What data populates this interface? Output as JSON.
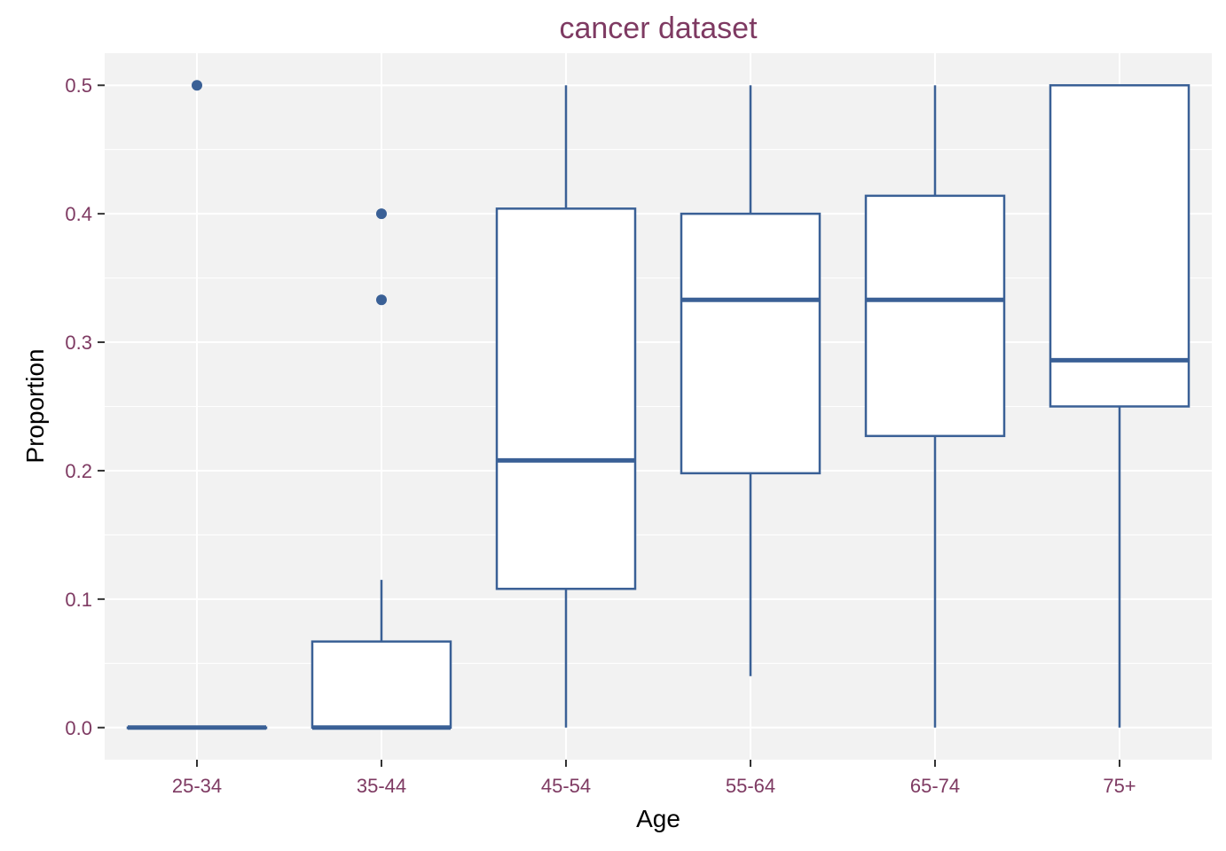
{
  "chart_data": {
    "type": "boxplot",
    "title": "cancer dataset",
    "xlabel": "Age",
    "ylabel": "Proportion",
    "ylim": [
      -0.025,
      0.525
    ],
    "yticks": [
      "0.0",
      "0.1",
      "0.2",
      "0.3",
      "0.4",
      "0.5"
    ],
    "categories": [
      "25-34",
      "35-44",
      "45-54",
      "55-64",
      "65-74",
      "75+"
    ],
    "boxes": [
      {
        "category": "25-34",
        "whisker_low": 0.0,
        "q1": 0.0,
        "median": 0.0,
        "q3": 0.0,
        "whisker_high": 0.0,
        "outliers": [
          0.5
        ]
      },
      {
        "category": "35-44",
        "whisker_low": 0.0,
        "q1": 0.0,
        "median": 0.0,
        "q3": 0.067,
        "whisker_high": 0.115,
        "outliers": [
          0.333,
          0.4
        ]
      },
      {
        "category": "45-54",
        "whisker_low": 0.0,
        "q1": 0.108,
        "median": 0.208,
        "q3": 0.404,
        "whisker_high": 0.5,
        "outliers": []
      },
      {
        "category": "55-64",
        "whisker_low": 0.04,
        "q1": 0.198,
        "median": 0.333,
        "q3": 0.4,
        "whisker_high": 0.5,
        "outliers": []
      },
      {
        "category": "65-74",
        "whisker_low": 0.0,
        "q1": 0.227,
        "median": 0.333,
        "q3": 0.414,
        "whisker_high": 0.5,
        "outliers": []
      },
      {
        "category": "75+",
        "whisker_low": 0.0,
        "q1": 0.25,
        "median": 0.286,
        "q3": 0.5,
        "whisker_high": 0.5,
        "outliers": []
      }
    ],
    "grid": true,
    "legend": "none"
  },
  "colors": {
    "panel_bg": "#f2f2f2",
    "grid": "#ffffff",
    "box_stroke": "#3a6096",
    "box_fill": "#ffffff",
    "accent_text": "#7e3a62",
    "axis_title": "#000000"
  }
}
